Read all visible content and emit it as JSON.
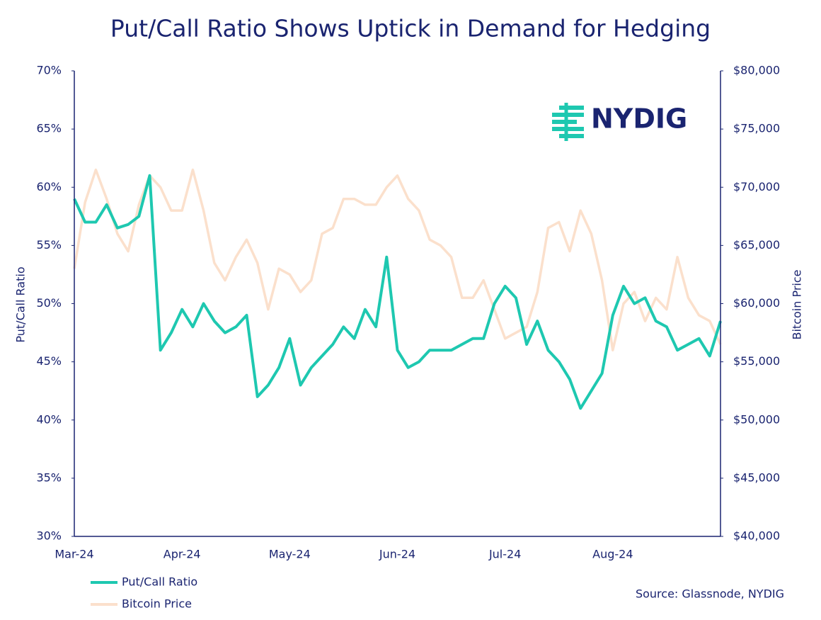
{
  "chart_data": {
    "type": "line",
    "title": "Put/Call Ratio Shows Uptick in Demand for Hedging",
    "logo": "NYDIG",
    "source": "Source: Glassnode, NYDIG",
    "ylabel": "Put/Call Ratio",
    "y2label": "Bitcoin Price",
    "categories": [
      "Mar-24",
      null,
      null,
      null,
      null,
      null,
      null,
      null,
      null,
      null,
      "Apr-24",
      null,
      null,
      null,
      null,
      null,
      null,
      null,
      null,
      null,
      "May-24",
      null,
      null,
      null,
      null,
      null,
      null,
      null,
      null,
      null,
      "Jun-24",
      null,
      null,
      null,
      null,
      null,
      null,
      null,
      null,
      null,
      "Jul-24",
      null,
      null,
      null,
      null,
      null,
      null,
      null,
      null,
      null,
      "Aug-24",
      null,
      null,
      null,
      null,
      null,
      null,
      null,
      null,
      null,
      null
    ],
    "ylim": [
      30,
      70
    ],
    "yticks": [
      {
        "value": 30,
        "label": "30%"
      },
      {
        "value": 35,
        "label": "35%"
      },
      {
        "value": 40,
        "label": "40%"
      },
      {
        "value": 45,
        "label": "45%"
      },
      {
        "value": 50,
        "label": "50%"
      },
      {
        "value": 55,
        "label": "55%"
      },
      {
        "value": 60,
        "label": "60%"
      },
      {
        "value": 65,
        "label": "65%"
      },
      {
        "value": 70,
        "label": "70%"
      }
    ],
    "y2lim": [
      40000,
      80000
    ],
    "y2ticks": [
      {
        "value": 40000,
        "label": "$40,000"
      },
      {
        "value": 45000,
        "label": "$45,000"
      },
      {
        "value": 50000,
        "label": "$50,000"
      },
      {
        "value": 55000,
        "label": "$55,000"
      },
      {
        "value": 60000,
        "label": "$60,000"
      },
      {
        "value": 65000,
        "label": "$65,000"
      },
      {
        "value": 70000,
        "label": "$70,000"
      },
      {
        "value": 75000,
        "label": "$75,000"
      },
      {
        "value": 80000,
        "label": "$80,000"
      }
    ],
    "series": [
      {
        "name": "Put/Call Ratio",
        "color": "#1ec8b0",
        "values": [
          59,
          57,
          57,
          58.5,
          56.5,
          56.8,
          57.5,
          61,
          46,
          47.5,
          49.5,
          48,
          50,
          48.5,
          47.5,
          48,
          49,
          42,
          43,
          44.5,
          47,
          43,
          44.5,
          45.5,
          46.5,
          48,
          47,
          49.5,
          48,
          54,
          46,
          44.5,
          45,
          46,
          46,
          46,
          46.5,
          47,
          47,
          50,
          51.5,
          50.5,
          46.5,
          48.5,
          46,
          45,
          43.5,
          41,
          42.5,
          44,
          49,
          51.5,
          50,
          50.5,
          48.5,
          48,
          46,
          46.5,
          47,
          45.5,
          48.5
        ]
      },
      {
        "name": "Bitcoin Price",
        "color": "#fbe0cc",
        "axis": "y2",
        "values": [
          63000,
          68700,
          71500,
          69000,
          66000,
          64500,
          68500,
          71000,
          70000,
          68000,
          68000,
          71500,
          68000,
          63500,
          62000,
          64000,
          65500,
          63500,
          59500,
          63000,
          62500,
          61000,
          62000,
          66000,
          66500,
          69000,
          69000,
          68500,
          68500,
          70000,
          71000,
          69000,
          68000,
          65500,
          65000,
          64000,
          60500,
          60500,
          62000,
          59500,
          57000,
          57500,
          58000,
          61000,
          66500,
          67000,
          64500,
          68000,
          66000,
          62000,
          56000,
          60000,
          61000,
          58500,
          60500,
          59500,
          64000,
          60500,
          59000,
          58500,
          56500
        ]
      }
    ]
  }
}
